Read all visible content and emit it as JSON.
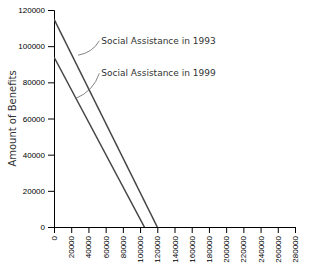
{
  "chart_data": {
    "type": "line",
    "series": [
      {
        "x": [
          0,
          120000
        ],
        "values": [
          115000,
          0
        ],
        "color": "#444444",
        "line_style": "solid"
      },
      {
        "x": [
          0,
          105000
        ],
        "values": [
          94000,
          0
        ],
        "color": "#444444",
        "line_style": "solid"
      }
    ],
    "annotations": [
      {
        "text": "Social Assistance in 1993",
        "xy": [
          28000,
          95000
        ],
        "xytext": [
          55000,
          103000
        ]
      },
      {
        "text": "Social Assistance in 1999",
        "xy": [
          25000,
          71000
        ],
        "xytext": [
          55000,
          85000
        ]
      }
    ],
    "xlim": [
      0,
      280000
    ],
    "ylim": [
      0,
      120000
    ],
    "xticks": [
      0,
      20000,
      40000,
      60000,
      80000,
      100000,
      120000,
      140000,
      160000,
      180000,
      200000,
      220000,
      240000,
      260000,
      280000
    ],
    "yticks": [
      0,
      20000,
      40000,
      60000,
      80000,
      100000,
      120000
    ],
    "ylabel": "Amount of Benefits",
    "grid": false
  }
}
